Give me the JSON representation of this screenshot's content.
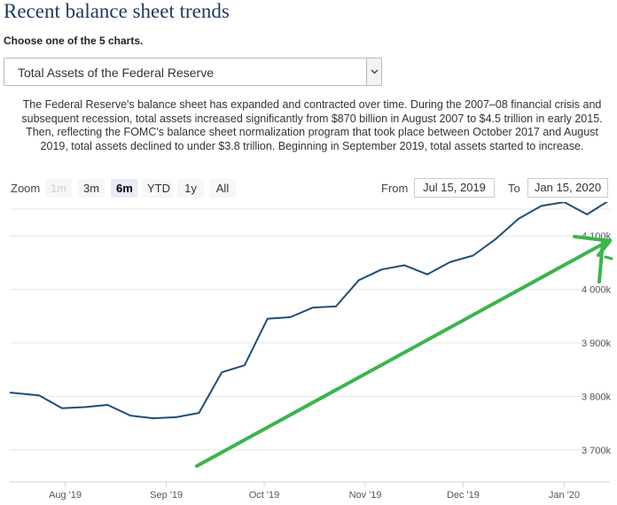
{
  "header": {
    "title": "Recent balance sheet trends",
    "subtitle": "Choose one of the 5 charts."
  },
  "chart_select": {
    "value": "Total Assets of the Federal Reserve"
  },
  "description": "The Federal Reserve's balance sheet has expanded and contracted over time. During the 2007–08 financial crisis and subsequent recession, total assets increased significantly from $870 billion in August 2007 to $4.5 trillion in early 2015. Then, reflecting the FOMC's balance sheet normalization program that took place between October 2017 and August 2019, total assets declined to under $3.8 trillion. Beginning in September 2019, total assets started to increase.",
  "zoom": {
    "label": "Zoom",
    "buttons": [
      {
        "label": "1m",
        "state": "disabled"
      },
      {
        "label": "3m",
        "state": "normal"
      },
      {
        "label": "6m",
        "state": "active"
      },
      {
        "label": "YTD",
        "state": "normal"
      },
      {
        "label": "1y",
        "state": "normal"
      },
      {
        "label": "All",
        "state": "normal"
      }
    ]
  },
  "range": {
    "from_label": "From",
    "from_value": "Jul 15, 2019",
    "to_label": "To",
    "to_value": "Jan 15, 2020"
  },
  "colors": {
    "line": "#1f4e79",
    "annotation": "#3cb44b",
    "grid": "#e6e6e6",
    "title": "#1f3a5f"
  },
  "chart_data": {
    "type": "line",
    "x_start": "2019-07-15",
    "x_end": "2020-01-15",
    "x_ticks": [
      {
        "label": "Aug '19",
        "date": "2019-08-01"
      },
      {
        "label": "Sep '19",
        "date": "2019-09-01"
      },
      {
        "label": "Oct '19",
        "date": "2019-10-01"
      },
      {
        "label": "Nov '19",
        "date": "2019-11-01"
      },
      {
        "label": "Dec '19",
        "date": "2019-12-01"
      },
      {
        "label": "Jan '20",
        "date": "2020-01-01"
      }
    ],
    "y_ticks": [
      {
        "label": "3 700k",
        "value": 3700000
      },
      {
        "label": "3 800k",
        "value": 3800000
      },
      {
        "label": "3 900k",
        "value": 3900000
      },
      {
        "label": "4 000k",
        "value": 4000000
      },
      {
        "label": "4 100k",
        "value": 4100000
      }
    ],
    "ylim": [
      3640000,
      4150000
    ],
    "grid": true,
    "series": [
      {
        "points": [
          {
            "date": "2019-07-15",
            "value": 3807000
          },
          {
            "date": "2019-07-24",
            "value": 3802000
          },
          {
            "date": "2019-07-31",
            "value": 3778000
          },
          {
            "date": "2019-08-07",
            "value": 3780000
          },
          {
            "date": "2019-08-14",
            "value": 3784000
          },
          {
            "date": "2019-08-21",
            "value": 3764000
          },
          {
            "date": "2019-08-28",
            "value": 3759000
          },
          {
            "date": "2019-09-04",
            "value": 3761000
          },
          {
            "date": "2019-09-11",
            "value": 3769000
          },
          {
            "date": "2019-09-18",
            "value": 3845000
          },
          {
            "date": "2019-09-25",
            "value": 3858000
          },
          {
            "date": "2019-10-02",
            "value": 3945000
          },
          {
            "date": "2019-10-09",
            "value": 3948000
          },
          {
            "date": "2019-10-16",
            "value": 3966000
          },
          {
            "date": "2019-10-23",
            "value": 3968000
          },
          {
            "date": "2019-10-30",
            "value": 4017000
          },
          {
            "date": "2019-11-06",
            "value": 4037000
          },
          {
            "date": "2019-11-13",
            "value": 4045000
          },
          {
            "date": "2019-11-20",
            "value": 4028000
          },
          {
            "date": "2019-11-27",
            "value": 4051000
          },
          {
            "date": "2019-12-04",
            "value": 4063000
          },
          {
            "date": "2019-12-11",
            "value": 4094000
          },
          {
            "date": "2019-12-18",
            "value": 4132000
          },
          {
            "date": "2019-12-25",
            "value": 4156000
          },
          {
            "date": "2020-01-01",
            "value": 4163000
          },
          {
            "date": "2020-01-08",
            "value": 4140000
          },
          {
            "date": "2020-01-15",
            "value": 4167000
          }
        ]
      }
    ]
  }
}
